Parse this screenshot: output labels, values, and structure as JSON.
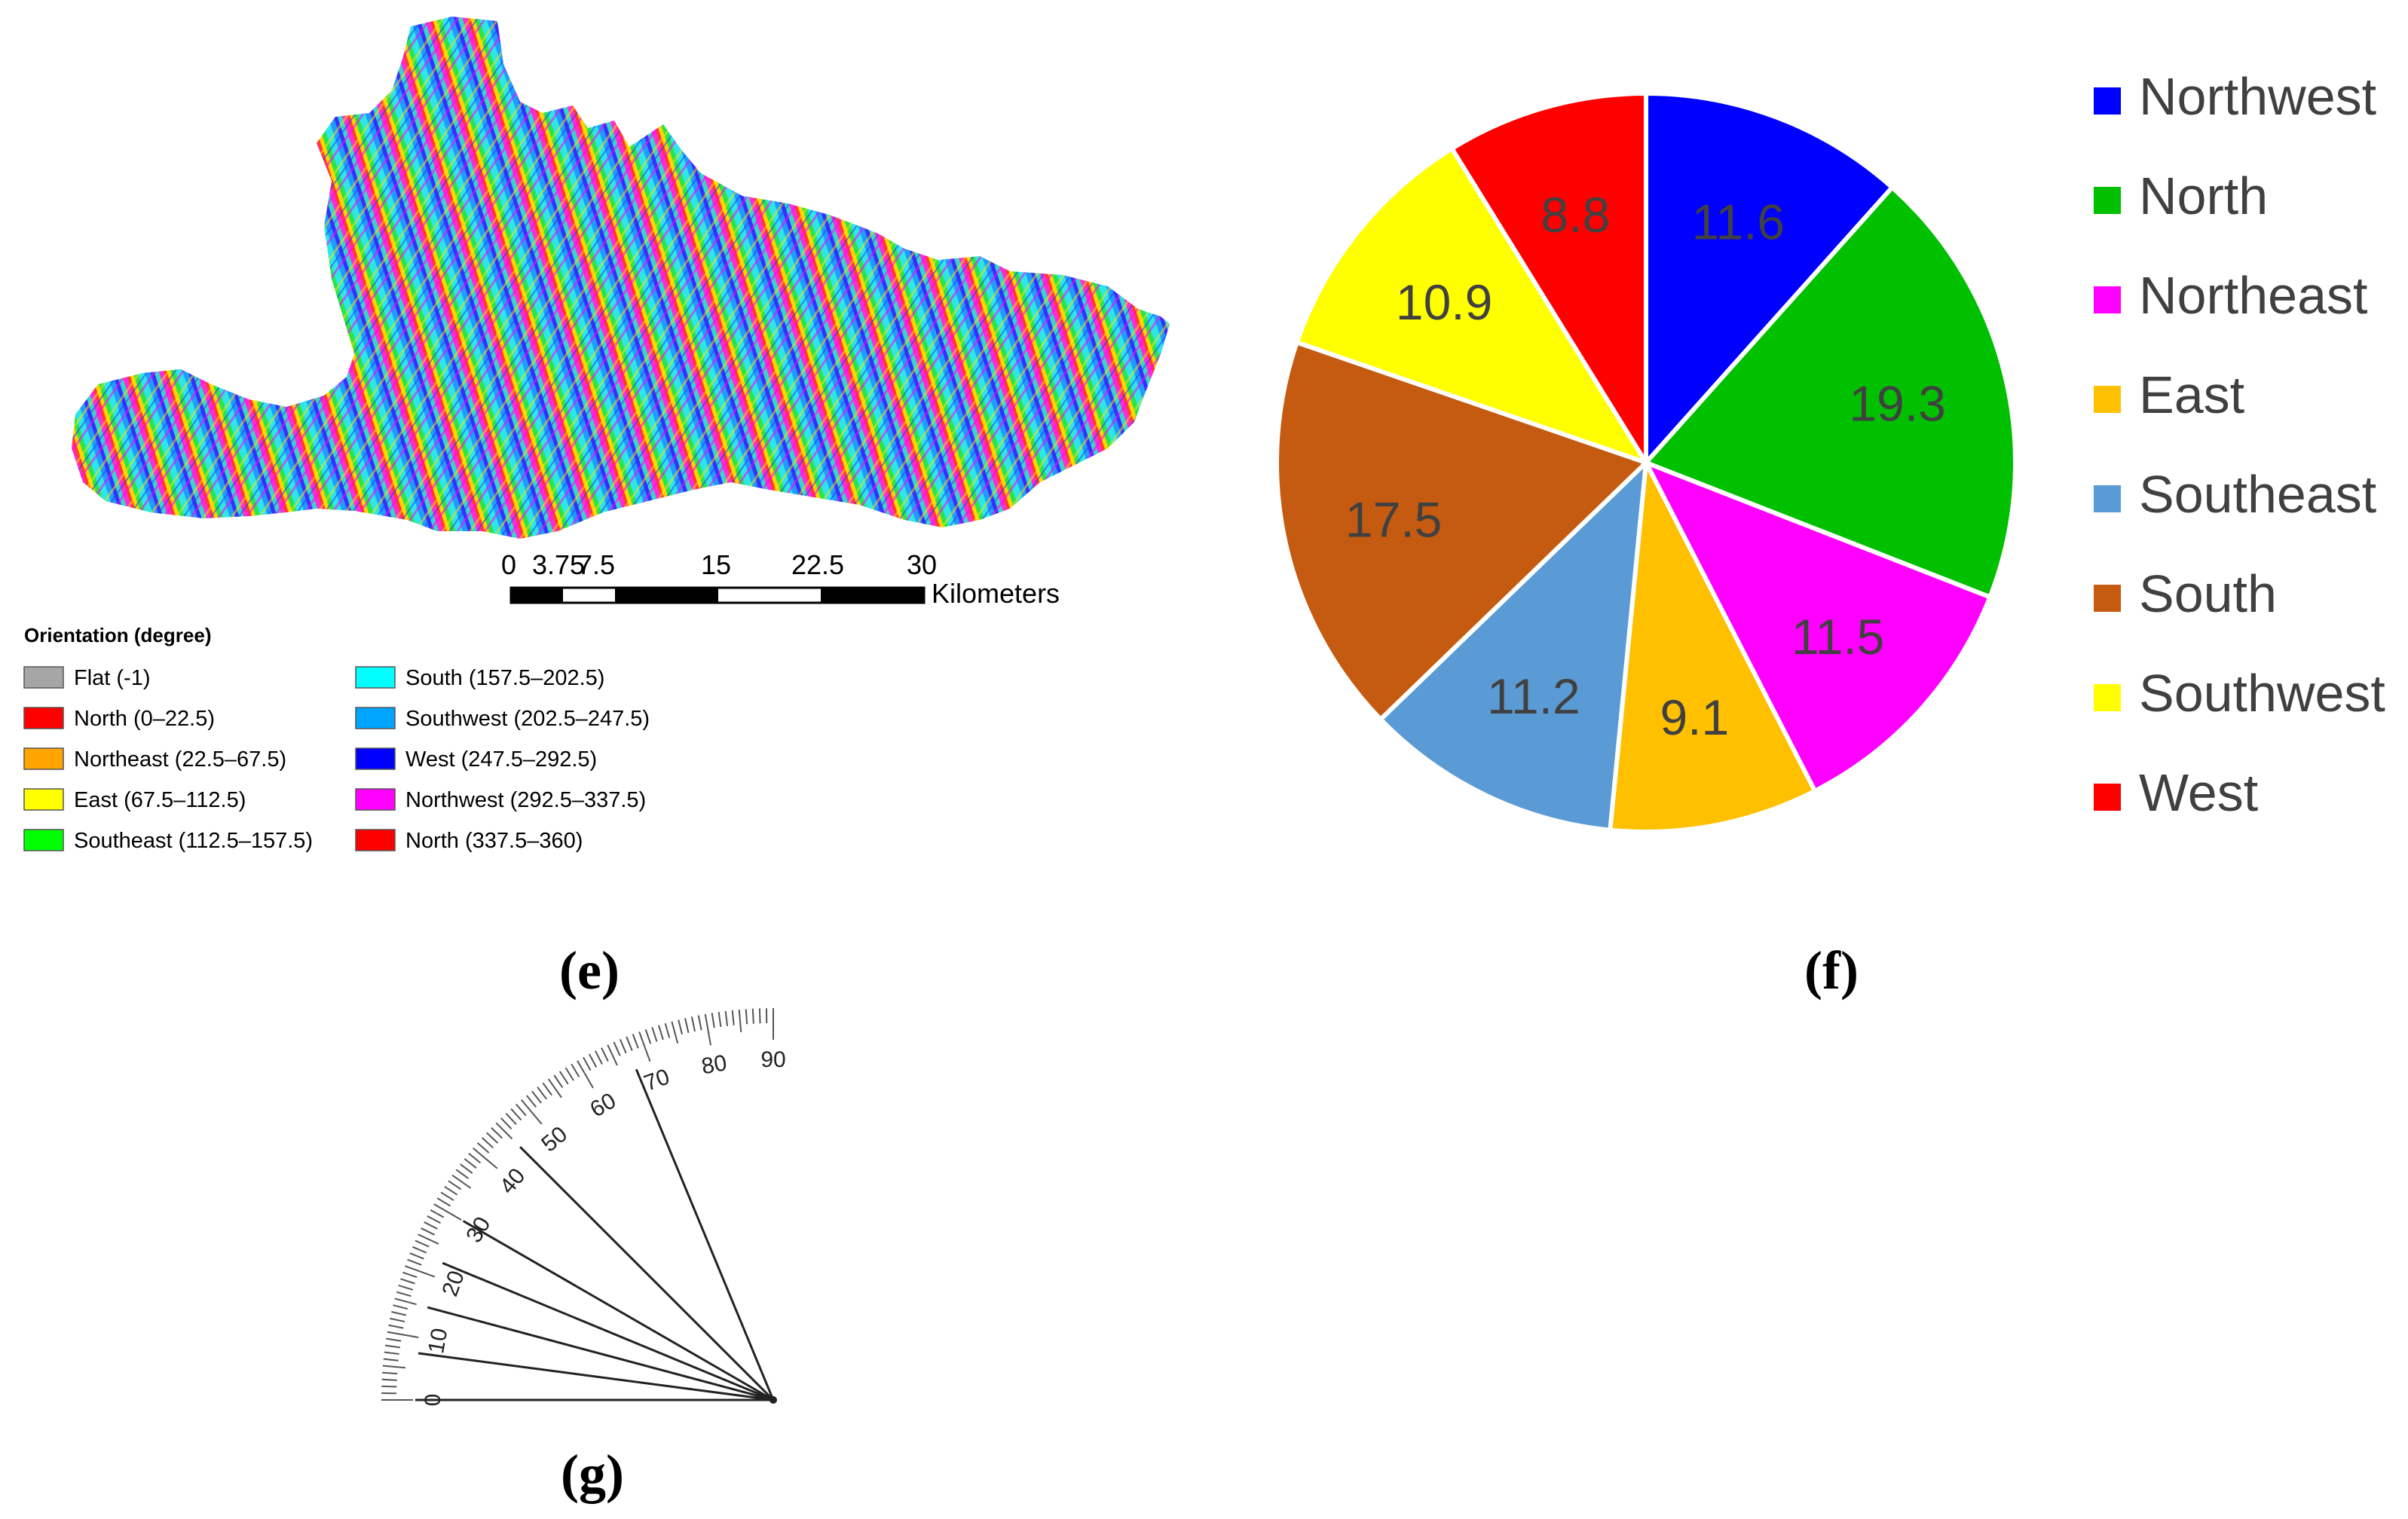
{
  "panels": {
    "e": {
      "label": "(e)",
      "scale_bar": {
        "ticks": [
          "0",
          "3.75",
          "7.5",
          "15",
          "22.5",
          "30"
        ],
        "unit": "Kilometers"
      },
      "legend": {
        "title": "Orientation (degree)",
        "items": [
          {
            "label": "Flat (-1)",
            "color": "#a6a6a6"
          },
          {
            "label": "North (0–22.5)",
            "color": "#ff0000"
          },
          {
            "label": "Northeast (22.5–67.5)",
            "color": "#ffa500"
          },
          {
            "label": "East (67.5–112.5)",
            "color": "#ffff00"
          },
          {
            "label": "Southeast (112.5–157.5)",
            "color": "#00ff00"
          },
          {
            "label": "South (157.5–202.5)",
            "color": "#00ffff"
          },
          {
            "label": "Southwest (202.5–247.5)",
            "color": "#00a5ff"
          },
          {
            "label": "West (247.5–292.5)",
            "color": "#0000ff"
          },
          {
            "label": "Northwest (292.5–337.5)",
            "color": "#ff00ff"
          },
          {
            "label": "North (337.5–360)",
            "color": "#ff0000"
          }
        ]
      }
    },
    "f": {
      "label": "(f)"
    },
    "g": {
      "label": "(g)",
      "tick_labels": [
        "0",
        "10",
        "20",
        "30",
        "40",
        "50",
        "60",
        "70",
        "80",
        "90"
      ],
      "drawn_lines_deg": [
        0,
        7.5,
        15,
        22.5,
        30,
        45,
        67.5
      ]
    }
  },
  "chart_data": {
    "type": "pie",
    "title": "",
    "slices": [
      {
        "name": "Northwest",
        "value": 11.6,
        "color": "#0000ff"
      },
      {
        "name": "North",
        "value": 19.3,
        "color": "#00c000"
      },
      {
        "name": "Northeast",
        "value": 11.5,
        "color": "#ff00ff"
      },
      {
        "name": "East",
        "value": 9.1,
        "color": "#ffc000"
      },
      {
        "name": "Southeast",
        "value": 11.2,
        "color": "#5b9bd5"
      },
      {
        "name": "South",
        "value": 17.5,
        "color": "#c55a11"
      },
      {
        "name": "Southwest",
        "value": 10.9,
        "color": "#ffff00"
      },
      {
        "name": "West",
        "value": 8.8,
        "color": "#ff0000"
      }
    ],
    "start_angle_deg": 0,
    "direction": "clockwise",
    "legend_position": "right",
    "data_label_color": "#404040"
  }
}
